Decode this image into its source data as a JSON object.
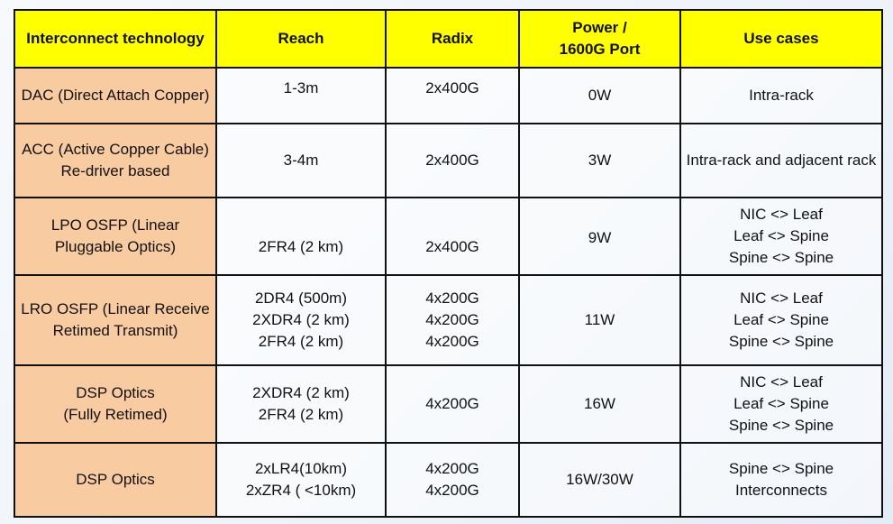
{
  "headers": [
    "Interconnect technology",
    "Reach",
    "Radix",
    "Power /\n1600G Port",
    "Use cases"
  ],
  "rows": [
    {
      "tech": "DAC (Direct Attach Copper)",
      "reach": "1-3m",
      "radix": "2x400G",
      "power": "0W",
      "use": "Intra-rack"
    },
    {
      "tech": "ACC (Active Copper Cable) Re-driver based",
      "reach": "3-4m",
      "radix": "2x400G",
      "power": "3W",
      "use": "Intra-rack and adjacent rack"
    },
    {
      "tech": "LPO OSFP (Linear Pluggable Optics)",
      "reach": "2FR4 (2 km)",
      "radix": "2x400G",
      "power": "9W",
      "use": "NIC <> Leaf\nLeaf <> Spine\nSpine <> Spine"
    },
    {
      "tech": "LRO OSFP (Linear Receive Retimed Transmit)",
      "reach": "2DR4 (500m)\n2XDR4 (2 km)\n2FR4 (2 km)",
      "radix": "4x200G\n4x200G\n4x200G",
      "power": "11W",
      "use": "NIC <> Leaf\nLeaf <> Spine\nSpine <> Spine"
    },
    {
      "tech": "DSP Optics\n(Fully Retimed)",
      "reach": "2XDR4 (2 km)\n2FR4 (2 km)",
      "radix": "4x200G",
      "power": "16W",
      "use": "NIC <> Leaf\nLeaf <> Spine\nSpine <> Spine"
    },
    {
      "tech": "DSP Optics",
      "reach": "2xLR4(10km)\n2xZR4 ( <10km)",
      "radix": "4x200G\n4x200G",
      "power": "16W/30W",
      "use": "Spine <> Spine\nInterconnects"
    }
  ],
  "colors": {
    "header": "#ffff00",
    "tech_column": "#f8cba1"
  }
}
